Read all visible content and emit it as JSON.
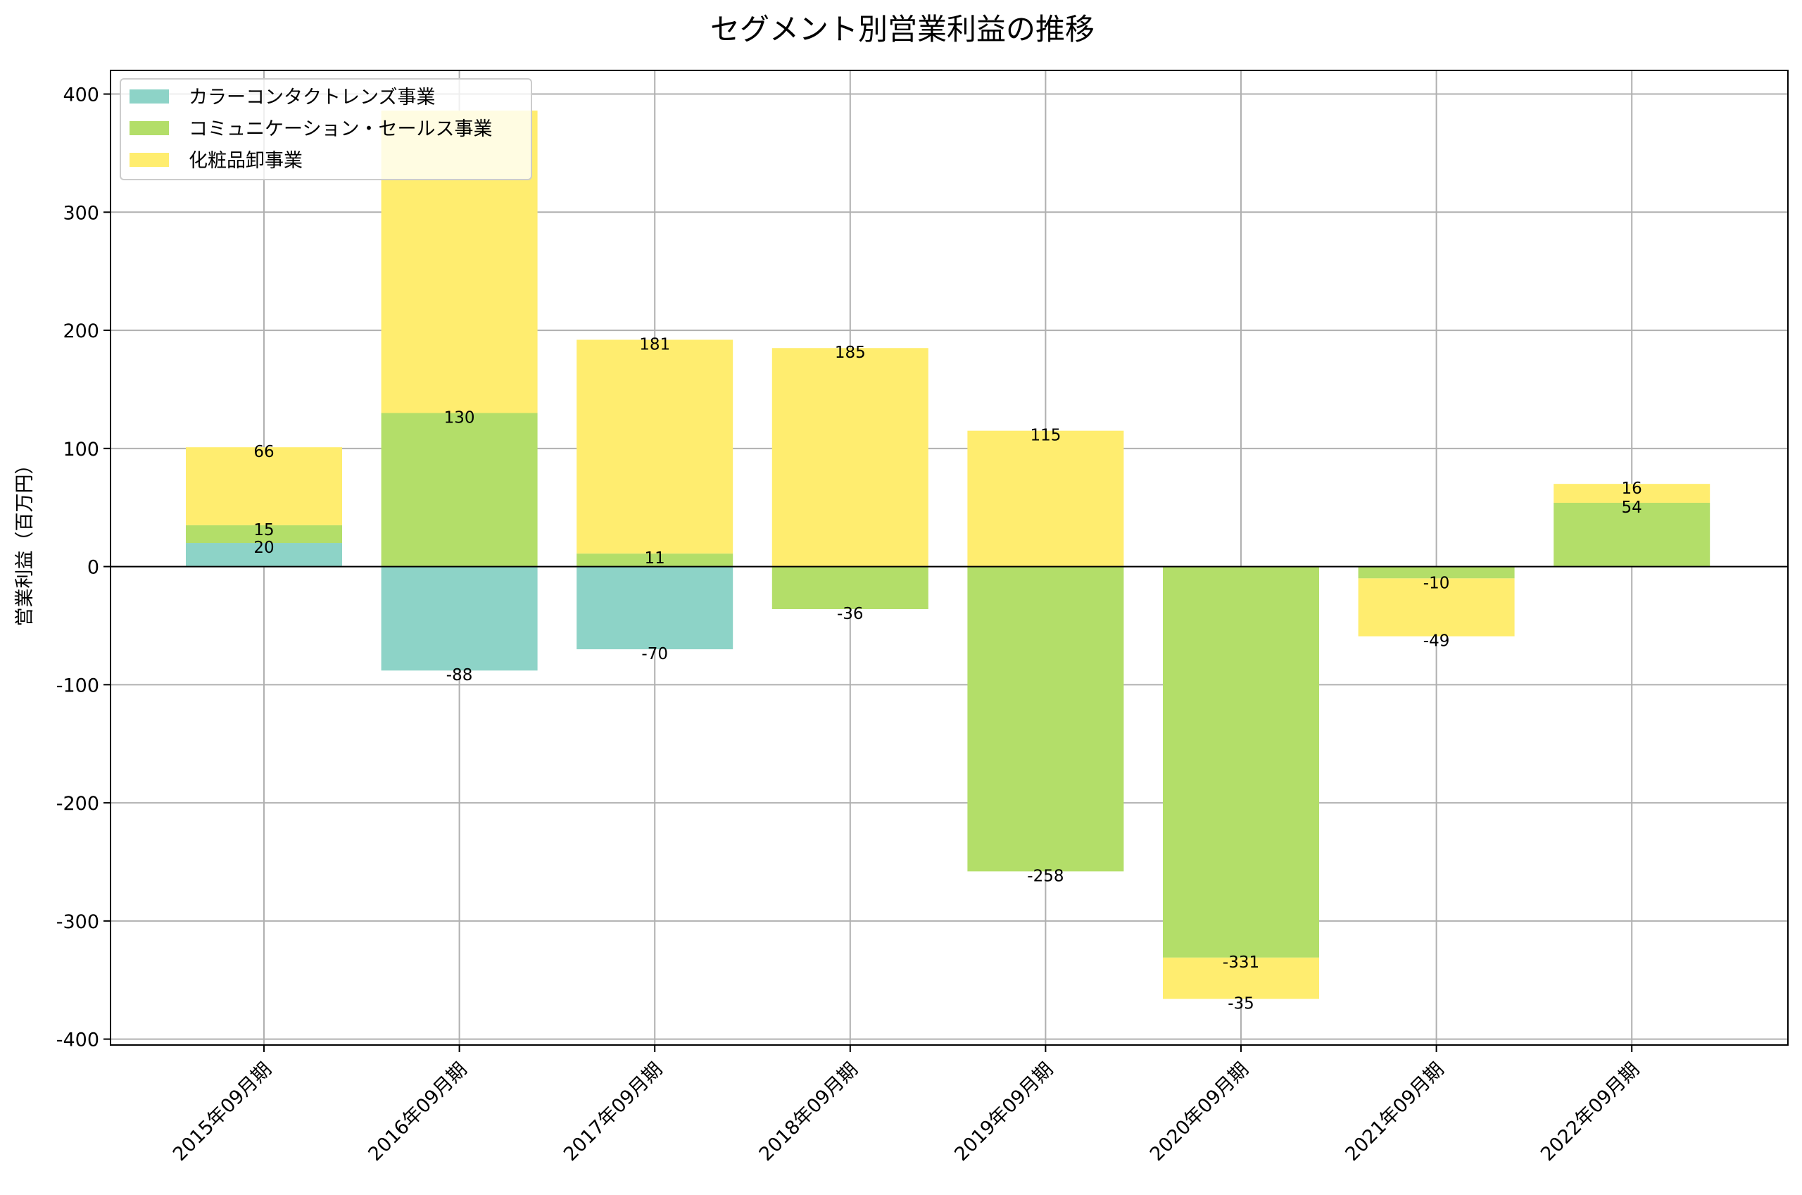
{
  "chart_data": {
    "type": "bar",
    "stacked": true,
    "title": "セグメント別営業利益の推移",
    "xlabel": "",
    "ylabel": "営業利益（百万円）",
    "ylim": [
      -405,
      420
    ],
    "yticks": [
      -400,
      -300,
      -200,
      -100,
      0,
      100,
      200,
      300,
      400
    ],
    "ytick_labels": [
      "-400",
      "-300",
      "-200",
      "-100",
      "0",
      "100",
      "200",
      "300",
      "400"
    ],
    "grid": true,
    "legend_position": "top-left",
    "categories": [
      "2015年09月期",
      "2016年09月期",
      "2017年09月期",
      "2018年09月期",
      "2019年09月期",
      "2020年09月期",
      "2021年09月期",
      "2022年09月期"
    ],
    "series": [
      {
        "name": "カラーコンタクトレンズ事業",
        "color": "#8dd3c7",
        "values": [
          20,
          -88,
          -70,
          null,
          null,
          null,
          null,
          null
        ]
      },
      {
        "name": "コミュニケーション・セールス事業",
        "color": "#b3de69",
        "values": [
          15,
          130,
          11,
          -36,
          -258,
          -331,
          -10,
          54
        ]
      },
      {
        "name": "化粧品卸事業",
        "color": "#ffed6f",
        "values": [
          66,
          256,
          181,
          185,
          115,
          -35,
          -49,
          16
        ]
      }
    ],
    "data_labels": [
      [
        "20",
        "15",
        "66"
      ],
      [
        "-88",
        "130",
        ""
      ],
      [
        "-70",
        "11",
        "181"
      ],
      [
        "",
        "-36",
        "185"
      ],
      [
        "",
        "-258",
        "115"
      ],
      [
        "",
        "-331",
        "-35"
      ],
      [
        "",
        "-10",
        "-49"
      ],
      [
        "",
        "54",
        "16"
      ]
    ]
  }
}
